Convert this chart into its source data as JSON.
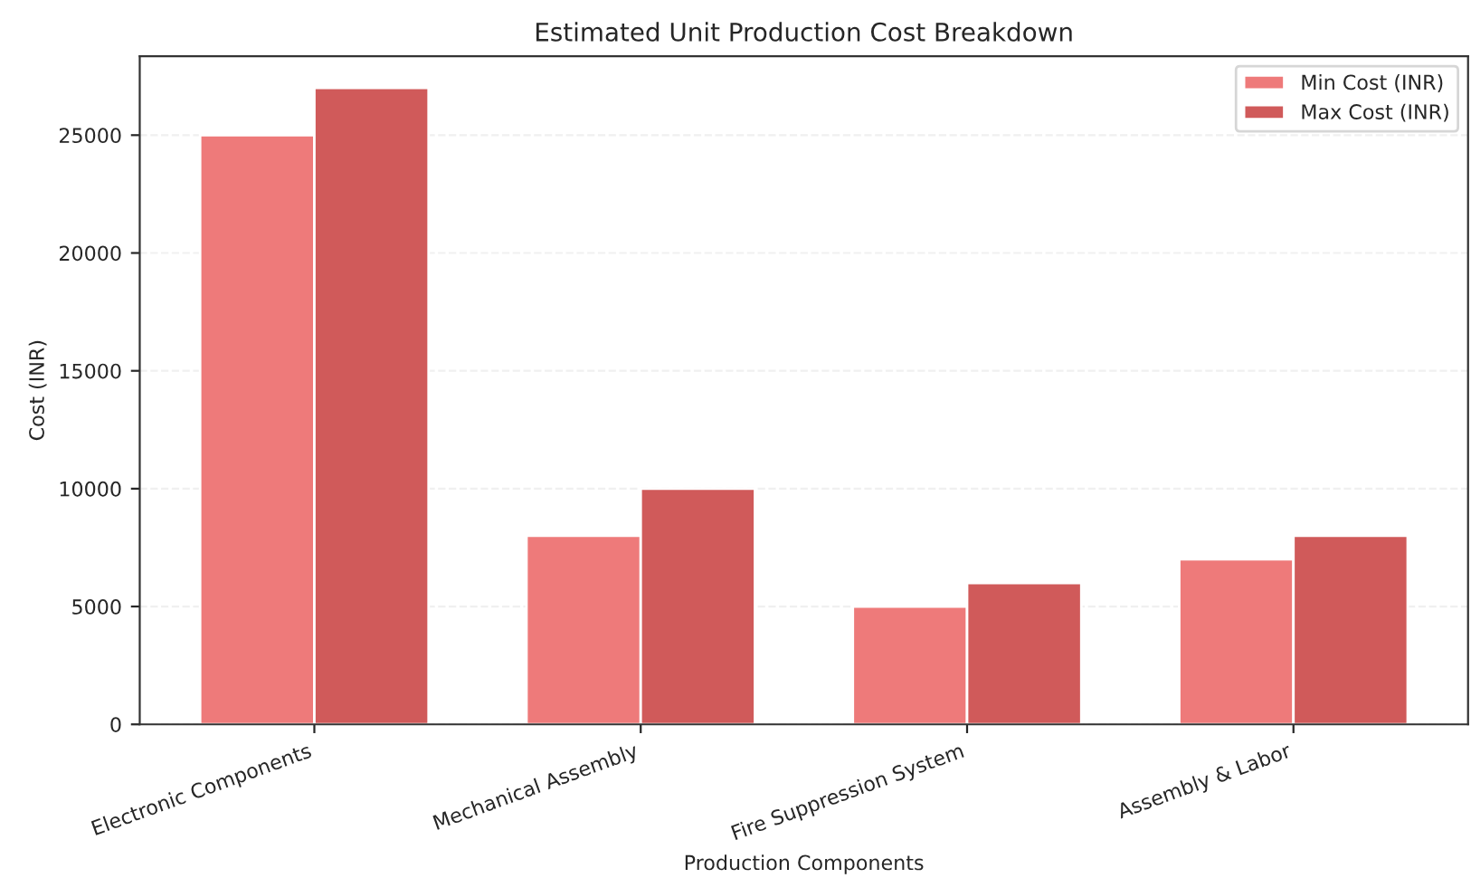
{
  "chart_data": {
    "type": "bar",
    "title": "Estimated Unit Production Cost Breakdown",
    "xlabel": "Production Components",
    "ylabel": "Cost (INR)",
    "categories": [
      "Electronic Components",
      "Mechanical Assembly",
      "Fire Suppression System",
      "Assembly & Labor"
    ],
    "series": [
      {
        "name": "Min Cost (INR)",
        "color": "#ee7a7a",
        "values": [
          25000,
          8000,
          5000,
          7000
        ]
      },
      {
        "name": "Max Cost (INR)",
        "color": "#d05a5a",
        "values": [
          27000,
          10000,
          6000,
          8000
        ]
      }
    ],
    "ylim": [
      0,
      28350
    ],
    "yticks": [
      0,
      5000,
      10000,
      15000,
      20000,
      25000
    ],
    "grid": "y",
    "legend": "top right"
  }
}
